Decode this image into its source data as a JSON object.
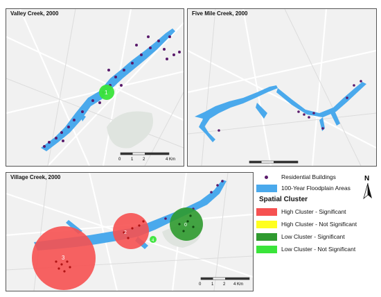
{
  "panels": {
    "valley": {
      "title": "Valley Creek, 2000"
    },
    "fivemile": {
      "title": "Five Mile Creek, 2000"
    },
    "village": {
      "title": "Village Creek, 2000"
    }
  },
  "scale_bar": {
    "ticks": [
      "0",
      "1",
      "2",
      "4 Km"
    ]
  },
  "legend": {
    "residential": "Residential Buildings",
    "floodplain": "100-Year Floodplain Areas",
    "cluster_title": "Spatial Cluster",
    "items": [
      {
        "label": "High Cluster - Significant",
        "color": "#f65151"
      },
      {
        "label": "High Cluster - Not Significant",
        "color": "#ffff1e"
      },
      {
        "label": "Low Cluster - Significant",
        "color": "#2f9a2f"
      },
      {
        "label": "Low Cluster - Not Significant",
        "color": "#3ae43a"
      }
    ]
  },
  "north": "N",
  "clusters": {
    "valley_1": "1",
    "village_3": "3",
    "village_2": "2",
    "village_4": "4",
    "village_0": "0"
  },
  "colors": {
    "floodplain": "#4aa9ec",
    "building": "#5a1a6b",
    "background": "#f1f1f1"
  }
}
